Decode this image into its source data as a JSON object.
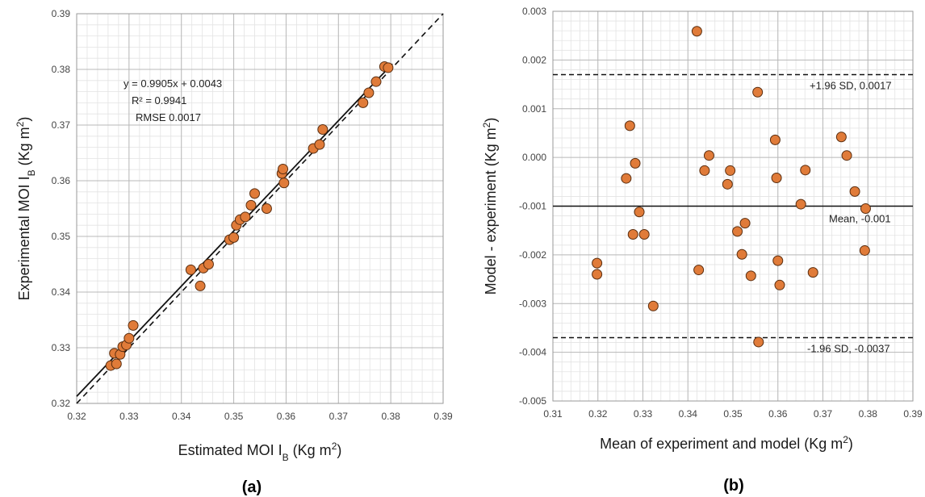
{
  "chart_data": [
    {
      "type": "scatter",
      "panel_label": "(a)",
      "xlabel": "Estimated MOI I",
      "xlabel_sub": "B",
      "xlabel_unit": " (Kg m",
      "xlabel_sup": "2",
      "xlabel_close": ")",
      "ylabel": "Experimental MOI I",
      "ylabel_sub": "B",
      "ylabel_unit": " (Kg m",
      "ylabel_sup": "2",
      "ylabel_close": ")",
      "xlim": [
        0.32,
        0.39
      ],
      "ylim": [
        0.32,
        0.39
      ],
      "xticks": [
        "0.32",
        "0.33",
        "0.34",
        "0.35",
        "0.36",
        "0.37",
        "0.38",
        "0.39"
      ],
      "yticks": [
        "0.32",
        "0.33",
        "0.34",
        "0.35",
        "0.36",
        "0.37",
        "0.38",
        "0.39"
      ],
      "grid": true,
      "annotations": [
        "y = 0.9905x + 0.0043",
        "R² = 0.9941",
        "RMSE 0.0017"
      ],
      "fit_line": {
        "slope": 0.9905,
        "intercept": 0.0043,
        "style": "solid"
      },
      "identity_line": {
        "slope": 1,
        "intercept": 0,
        "style": "dashed"
      },
      "points": [
        [
          0.3265,
          0.3268
        ],
        [
          0.3272,
          0.329
        ],
        [
          0.3276,
          0.3271
        ],
        [
          0.3283,
          0.3288
        ],
        [
          0.3288,
          0.3302
        ],
        [
          0.3295,
          0.3305
        ],
        [
          0.33,
          0.3317
        ],
        [
          0.3308,
          0.334
        ],
        [
          0.3418,
          0.344
        ],
        [
          0.3436,
          0.3411
        ],
        [
          0.3442,
          0.3443
        ],
        [
          0.3452,
          0.345
        ],
        [
          0.3492,
          0.3494
        ],
        [
          0.35,
          0.3498
        ],
        [
          0.3505,
          0.352
        ],
        [
          0.3512,
          0.353
        ],
        [
          0.3522,
          0.3535
        ],
        [
          0.3533,
          0.3556
        ],
        [
          0.354,
          0.3577
        ],
        [
          0.3563,
          0.355
        ],
        [
          0.3592,
          0.3613
        ],
        [
          0.3594,
          0.3621
        ],
        [
          0.3596,
          0.3596
        ],
        [
          0.3652,
          0.3658
        ],
        [
          0.3664,
          0.3665
        ],
        [
          0.367,
          0.3692
        ],
        [
          0.3747,
          0.374
        ],
        [
          0.3758,
          0.3758
        ],
        [
          0.3772,
          0.3778
        ],
        [
          0.3788,
          0.3805
        ],
        [
          0.3795,
          0.3803
        ]
      ],
      "marker_color": "#E07B39",
      "marker_edge": "#5a2e10"
    },
    {
      "type": "scatter",
      "panel_label": "(b)",
      "xlabel": "Mean of experiment and model (Kg m",
      "xlabel_sup": "2",
      "xlabel_close": ")",
      "ylabel": "Model - experiment (Kg m",
      "ylabel_sup": "2",
      "ylabel_close": ")",
      "xlim": [
        0.31,
        0.39
      ],
      "ylim": [
        -0.005,
        0.003
      ],
      "xticks": [
        "0.31",
        "0.32",
        "0.33",
        "0.34",
        "0.35",
        "0.36",
        "0.37",
        "0.38",
        "0.39"
      ],
      "yticks": [
        "-0.005",
        "-0.004",
        "-0.003",
        "-0.002",
        "-0.001",
        "0.000",
        "0.001",
        "0.002",
        "0.003"
      ],
      "grid": true,
      "hlines": [
        {
          "y": 0.0017,
          "style": "dashed",
          "label": "+1.96 SD, 0.0017"
        },
        {
          "y": -0.001,
          "style": "solid",
          "label": "Mean, -0.001"
        },
        {
          "y": -0.0037,
          "style": "dashed",
          "label": "-1.96 SD, -0.0037"
        }
      ],
      "points": [
        [
          0.3198,
          -0.00217
        ],
        [
          0.3198,
          -0.0024
        ],
        [
          0.3263,
          -0.00043
        ],
        [
          0.3271,
          0.00065
        ],
        [
          0.3278,
          -0.00158
        ],
        [
          0.3283,
          -0.00012
        ],
        [
          0.3292,
          -0.00112
        ],
        [
          0.3303,
          -0.00158
        ],
        [
          0.3323,
          -0.00305
        ],
        [
          0.342,
          0.00259
        ],
        [
          0.3424,
          -0.00231
        ],
        [
          0.3437,
          -0.00027
        ],
        [
          0.3447,
          4e-05
        ],
        [
          0.3488,
          -0.00055
        ],
        [
          0.3494,
          -0.00027
        ],
        [
          0.351,
          -0.00152
        ],
        [
          0.352,
          -0.00199
        ],
        [
          0.3527,
          -0.00135
        ],
        [
          0.354,
          -0.00243
        ],
        [
          0.3555,
          0.00134
        ],
        [
          0.3557,
          -0.00379
        ],
        [
          0.3594,
          0.00036
        ],
        [
          0.3597,
          -0.00042
        ],
        [
          0.36,
          -0.00212
        ],
        [
          0.3604,
          -0.00262
        ],
        [
          0.3651,
          -0.00096
        ],
        [
          0.3661,
          -0.00026
        ],
        [
          0.3678,
          -0.00236
        ],
        [
          0.3741,
          0.00042
        ],
        [
          0.3753,
          4e-05
        ],
        [
          0.3771,
          -0.0007
        ],
        [
          0.3793,
          -0.00191
        ],
        [
          0.3795,
          -0.00105
        ]
      ],
      "marker_color": "#E07B39",
      "marker_edge": "#5a2e10"
    }
  ]
}
